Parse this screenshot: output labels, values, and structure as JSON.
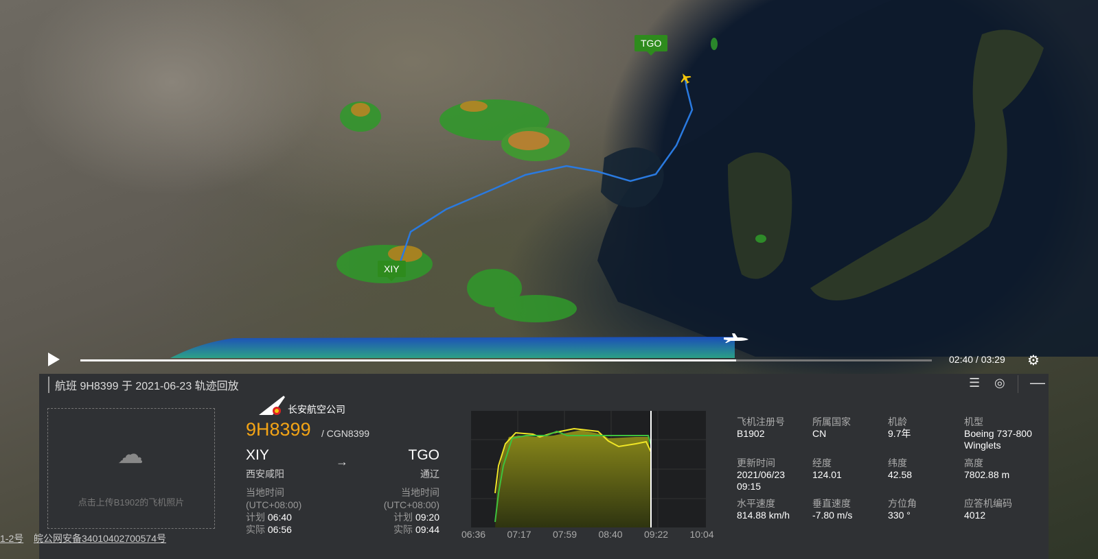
{
  "map": {
    "origin_tag": "XIY",
    "dest_tag": "TGO"
  },
  "playback": {
    "progress": 0.77,
    "time": "02:40 / 03:29",
    "play_icon": "play-icon",
    "settings_icon": "gear-icon"
  },
  "panel": {
    "title": "航班 9H8399 于 2021-06-23 轨迹回放",
    "icons": [
      "list-icon",
      "locate-icon",
      "minimize-icon"
    ],
    "upload_text": "点击上传B1902的飞机照片",
    "airline_name": "长安航空公司",
    "flight_no": "9H8399",
    "callsign": "/ CGN8399",
    "origin": {
      "code": "XIY",
      "city": "西安咸阳",
      "tz_label": "当地时间",
      "tz": "(UTC+08:00)",
      "sched_label": "计划",
      "sched": "06:40",
      "actual_label": "实际",
      "actual": "06:56"
    },
    "dest": {
      "code": "TGO",
      "city": "通辽",
      "tz_label": "当地时间",
      "tz": "(UTC+08:00)",
      "sched_label": "计划",
      "sched": "09:20",
      "actual_label": "实际",
      "actual": "09:44"
    },
    "arrow": "→",
    "chart_data": {
      "type": "area",
      "x_ticks": [
        "06:36",
        "07:17",
        "07:59",
        "08:40",
        "09:22",
        "10:04"
      ],
      "series": []
    },
    "info": [
      {
        "label": "飞机注册号",
        "value": "B1902"
      },
      {
        "label": "所属国家",
        "value": "CN"
      },
      {
        "label": "机龄",
        "value": "9.7年"
      },
      {
        "label": "机型",
        "value": "Boeing 737-800 Winglets"
      },
      {
        "label": "更新时间",
        "value": "2021/06/23 09:15"
      },
      {
        "label": "经度",
        "value": "124.01"
      },
      {
        "label": "纬度",
        "value": "42.58"
      },
      {
        "label": "高度",
        "value": "7802.88 m"
      },
      {
        "label": "水平速度",
        "value": "814.88 km/h"
      },
      {
        "label": "垂直速度",
        "value": "-7.80 m/s"
      },
      {
        "label": "方位角",
        "value": "330 °"
      },
      {
        "label": "应答机编码",
        "value": "4012"
      }
    ]
  },
  "footer": {
    "link1": "1-2号",
    "link2": "皖公网安备34010402700574号"
  }
}
